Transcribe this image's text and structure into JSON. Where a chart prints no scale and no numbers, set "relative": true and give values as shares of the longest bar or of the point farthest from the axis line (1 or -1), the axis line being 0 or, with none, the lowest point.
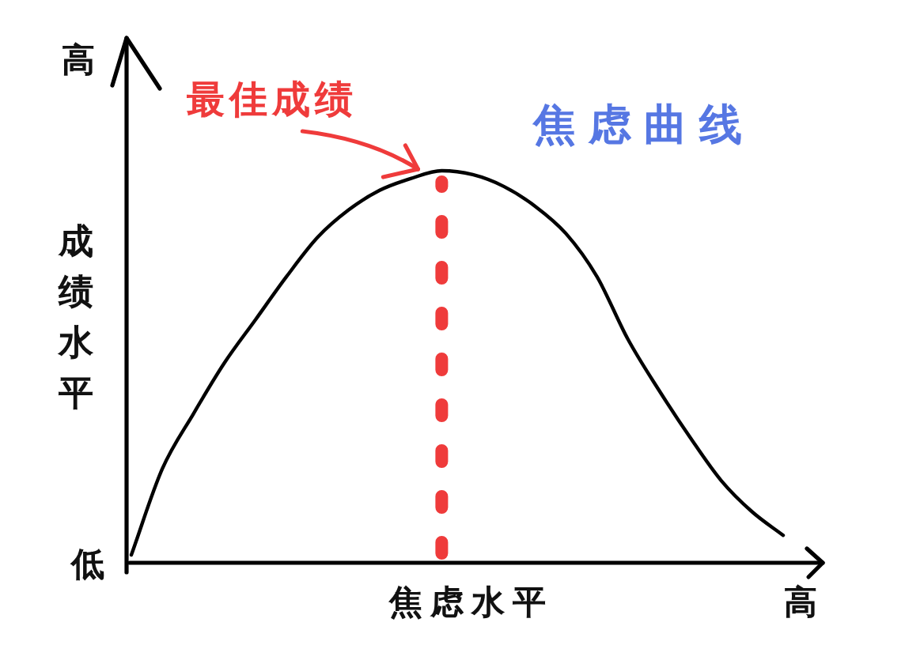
{
  "chart_data": {
    "type": "line",
    "relative": true,
    "title": "焦虑曲线",
    "xlabel": "焦虑水平",
    "ylabel": "成绩水平",
    "categories": [
      null,
      null,
      null,
      null,
      null,
      null,
      null,
      null,
      null,
      null,
      null,
      null,
      null,
      null,
      null,
      null,
      null,
      null,
      null,
      null,
      null,
      null
    ],
    "series": [
      {
        "color": "#000000",
        "values": [
          0.02,
          0.24,
          0.38,
          0.51,
          0.62,
          0.73,
          0.83,
          0.9,
          0.95,
          0.98,
          1.0,
          0.99,
          0.96,
          0.91,
          0.84,
          0.73,
          0.57,
          0.44,
          0.32,
          0.21,
          0.13,
          0.07
        ]
      }
    ],
    "annotations": [
      "低",
      "高",
      "高",
      "最佳成绩"
    ]
  }
}
